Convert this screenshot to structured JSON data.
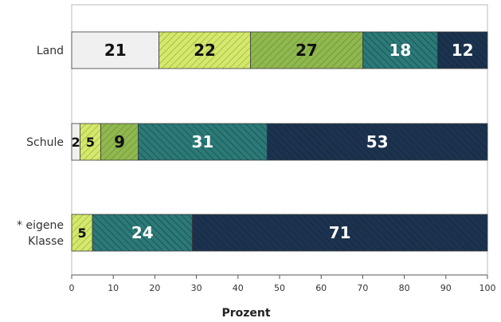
{
  "chart_data": {
    "type": "bar",
    "orientation": "horizontal",
    "stacked": true,
    "xlabel": "Prozent",
    "xlim": [
      0,
      100
    ],
    "xticks": [
      0,
      10,
      20,
      30,
      40,
      50,
      60,
      70,
      80,
      90,
      100
    ],
    "categories": [
      {
        "lines": [
          "Land"
        ]
      },
      {
        "lines": [
          "Schule"
        ]
      },
      {
        "lines": [
          "* eigene",
          "Klasse"
        ]
      }
    ],
    "series": [
      {
        "values": [
          21,
          2,
          0
        ],
        "color": "#f0f0f0",
        "hatch": "none",
        "label_color": "#111111"
      },
      {
        "values": [
          22,
          5,
          5
        ],
        "color": "#d4e86a",
        "hatch": "light",
        "label_color": "#111111"
      },
      {
        "values": [
          27,
          9,
          0
        ],
        "color": "#8fb84e",
        "hatch": "light",
        "label_color": "#111111"
      },
      {
        "values": [
          18,
          31,
          24
        ],
        "color": "#2b7a78",
        "hatch": "dark",
        "label_color": "#ffffff"
      },
      {
        "values": [
          12,
          53,
          71
        ],
        "color": "#1c3350",
        "hatch": "dark",
        "label_color": "#ffffff"
      }
    ],
    "grid": false,
    "legend": "none"
  }
}
